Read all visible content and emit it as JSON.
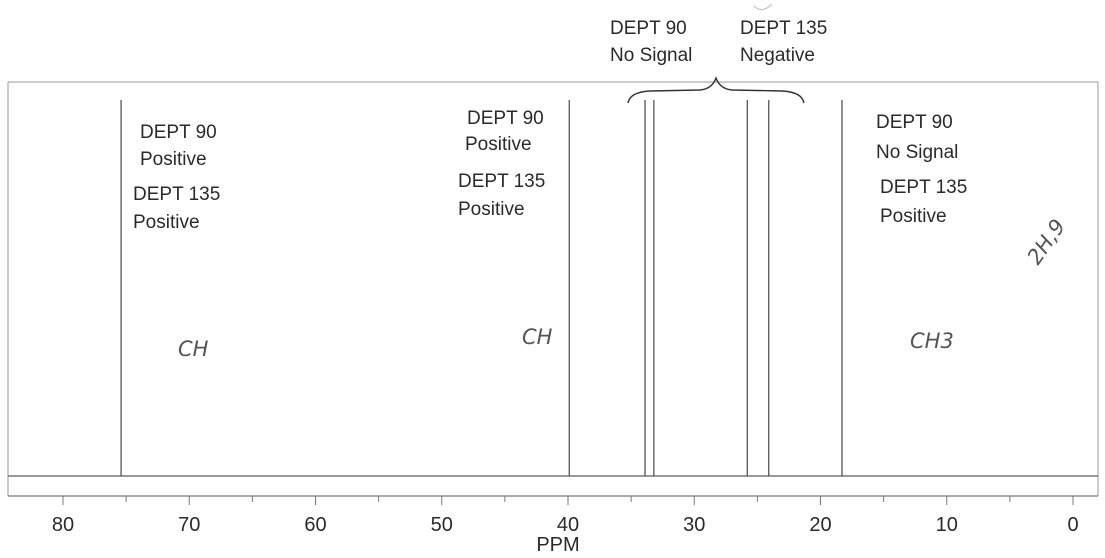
{
  "chart_data": {
    "type": "line",
    "x_axis": {
      "label": "PPM",
      "range": [
        80,
        0
      ],
      "reversed": true,
      "ticks": [
        "80",
        "70",
        "60",
        "50",
        "40",
        "30",
        "20",
        "10",
        "0"
      ]
    },
    "grid": false,
    "peaks": [
      {
        "ppm": 75.4
      },
      {
        "ppm": 39.9
      },
      {
        "ppm": 33.9
      },
      {
        "ppm": 33.2
      },
      {
        "ppm": 25.8
      },
      {
        "ppm": 24.1
      },
      {
        "ppm": 18.3
      }
    ],
    "annotations": [
      {
        "lines": [
          "DEPT 90",
          "Positive",
          "DEPT 135",
          "Positive"
        ]
      },
      {
        "lines": [
          "DEPT 90",
          "Positive",
          "DEPT 135",
          "Positive"
        ]
      },
      {
        "lines": [
          "DEPT 90",
          "No Signal",
          "DEPT 135",
          "Negative"
        ]
      },
      {
        "lines": [
          "DEPT 90",
          "No Signal",
          "DEPT 135",
          "Positive"
        ]
      }
    ],
    "handwritten": [
      "CH",
      "CH",
      "CH3",
      "2H,9"
    ]
  }
}
